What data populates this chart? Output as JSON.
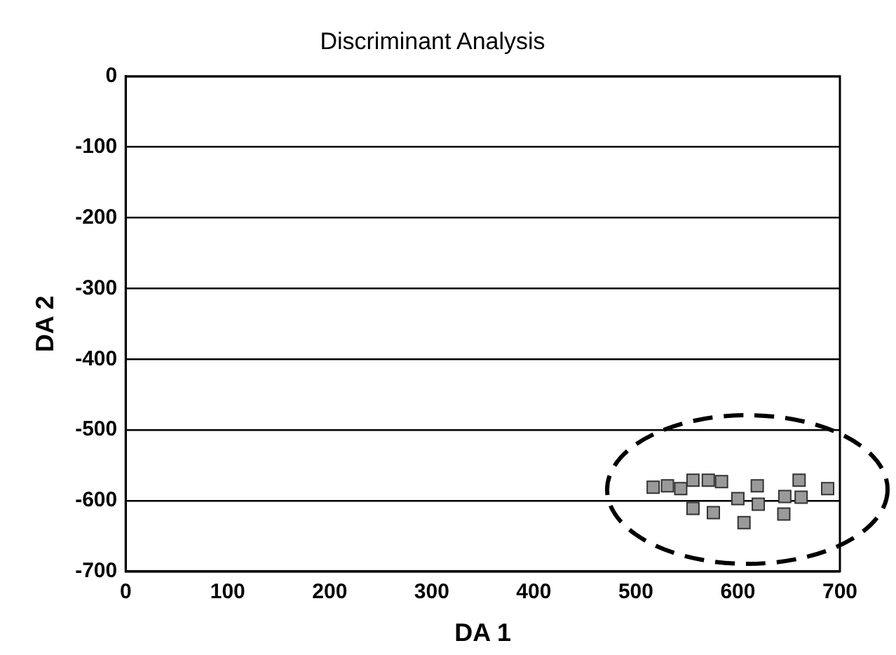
{
  "chart_data": {
    "type": "scatter",
    "title": "Discriminant Analysis",
    "xlabel": "DA 1",
    "ylabel": "DA 2",
    "xlim": [
      0,
      700
    ],
    "xticks": [
      0,
      100,
      200,
      300,
      400,
      500,
      600,
      700
    ],
    "ylim": [
      -700,
      0
    ],
    "yticks": [
      -700,
      -600,
      -500,
      -400,
      -300,
      -200,
      -100,
      0
    ],
    "grid": "y",
    "marker": "square",
    "series": [
      {
        "color": "#9a9a9a",
        "x": [
          517,
          531,
          544,
          556,
          571,
          584,
          556,
          576,
          600,
          606,
          619,
          620,
          646,
          645,
          660,
          662,
          688
        ],
        "values": [
          -581,
          -579,
          -583,
          -571,
          -571,
          -573,
          -611,
          -617,
          -597,
          -631,
          -579,
          -605,
          -594,
          -619,
          -571,
          -595,
          -583
        ]
      }
    ]
  }
}
